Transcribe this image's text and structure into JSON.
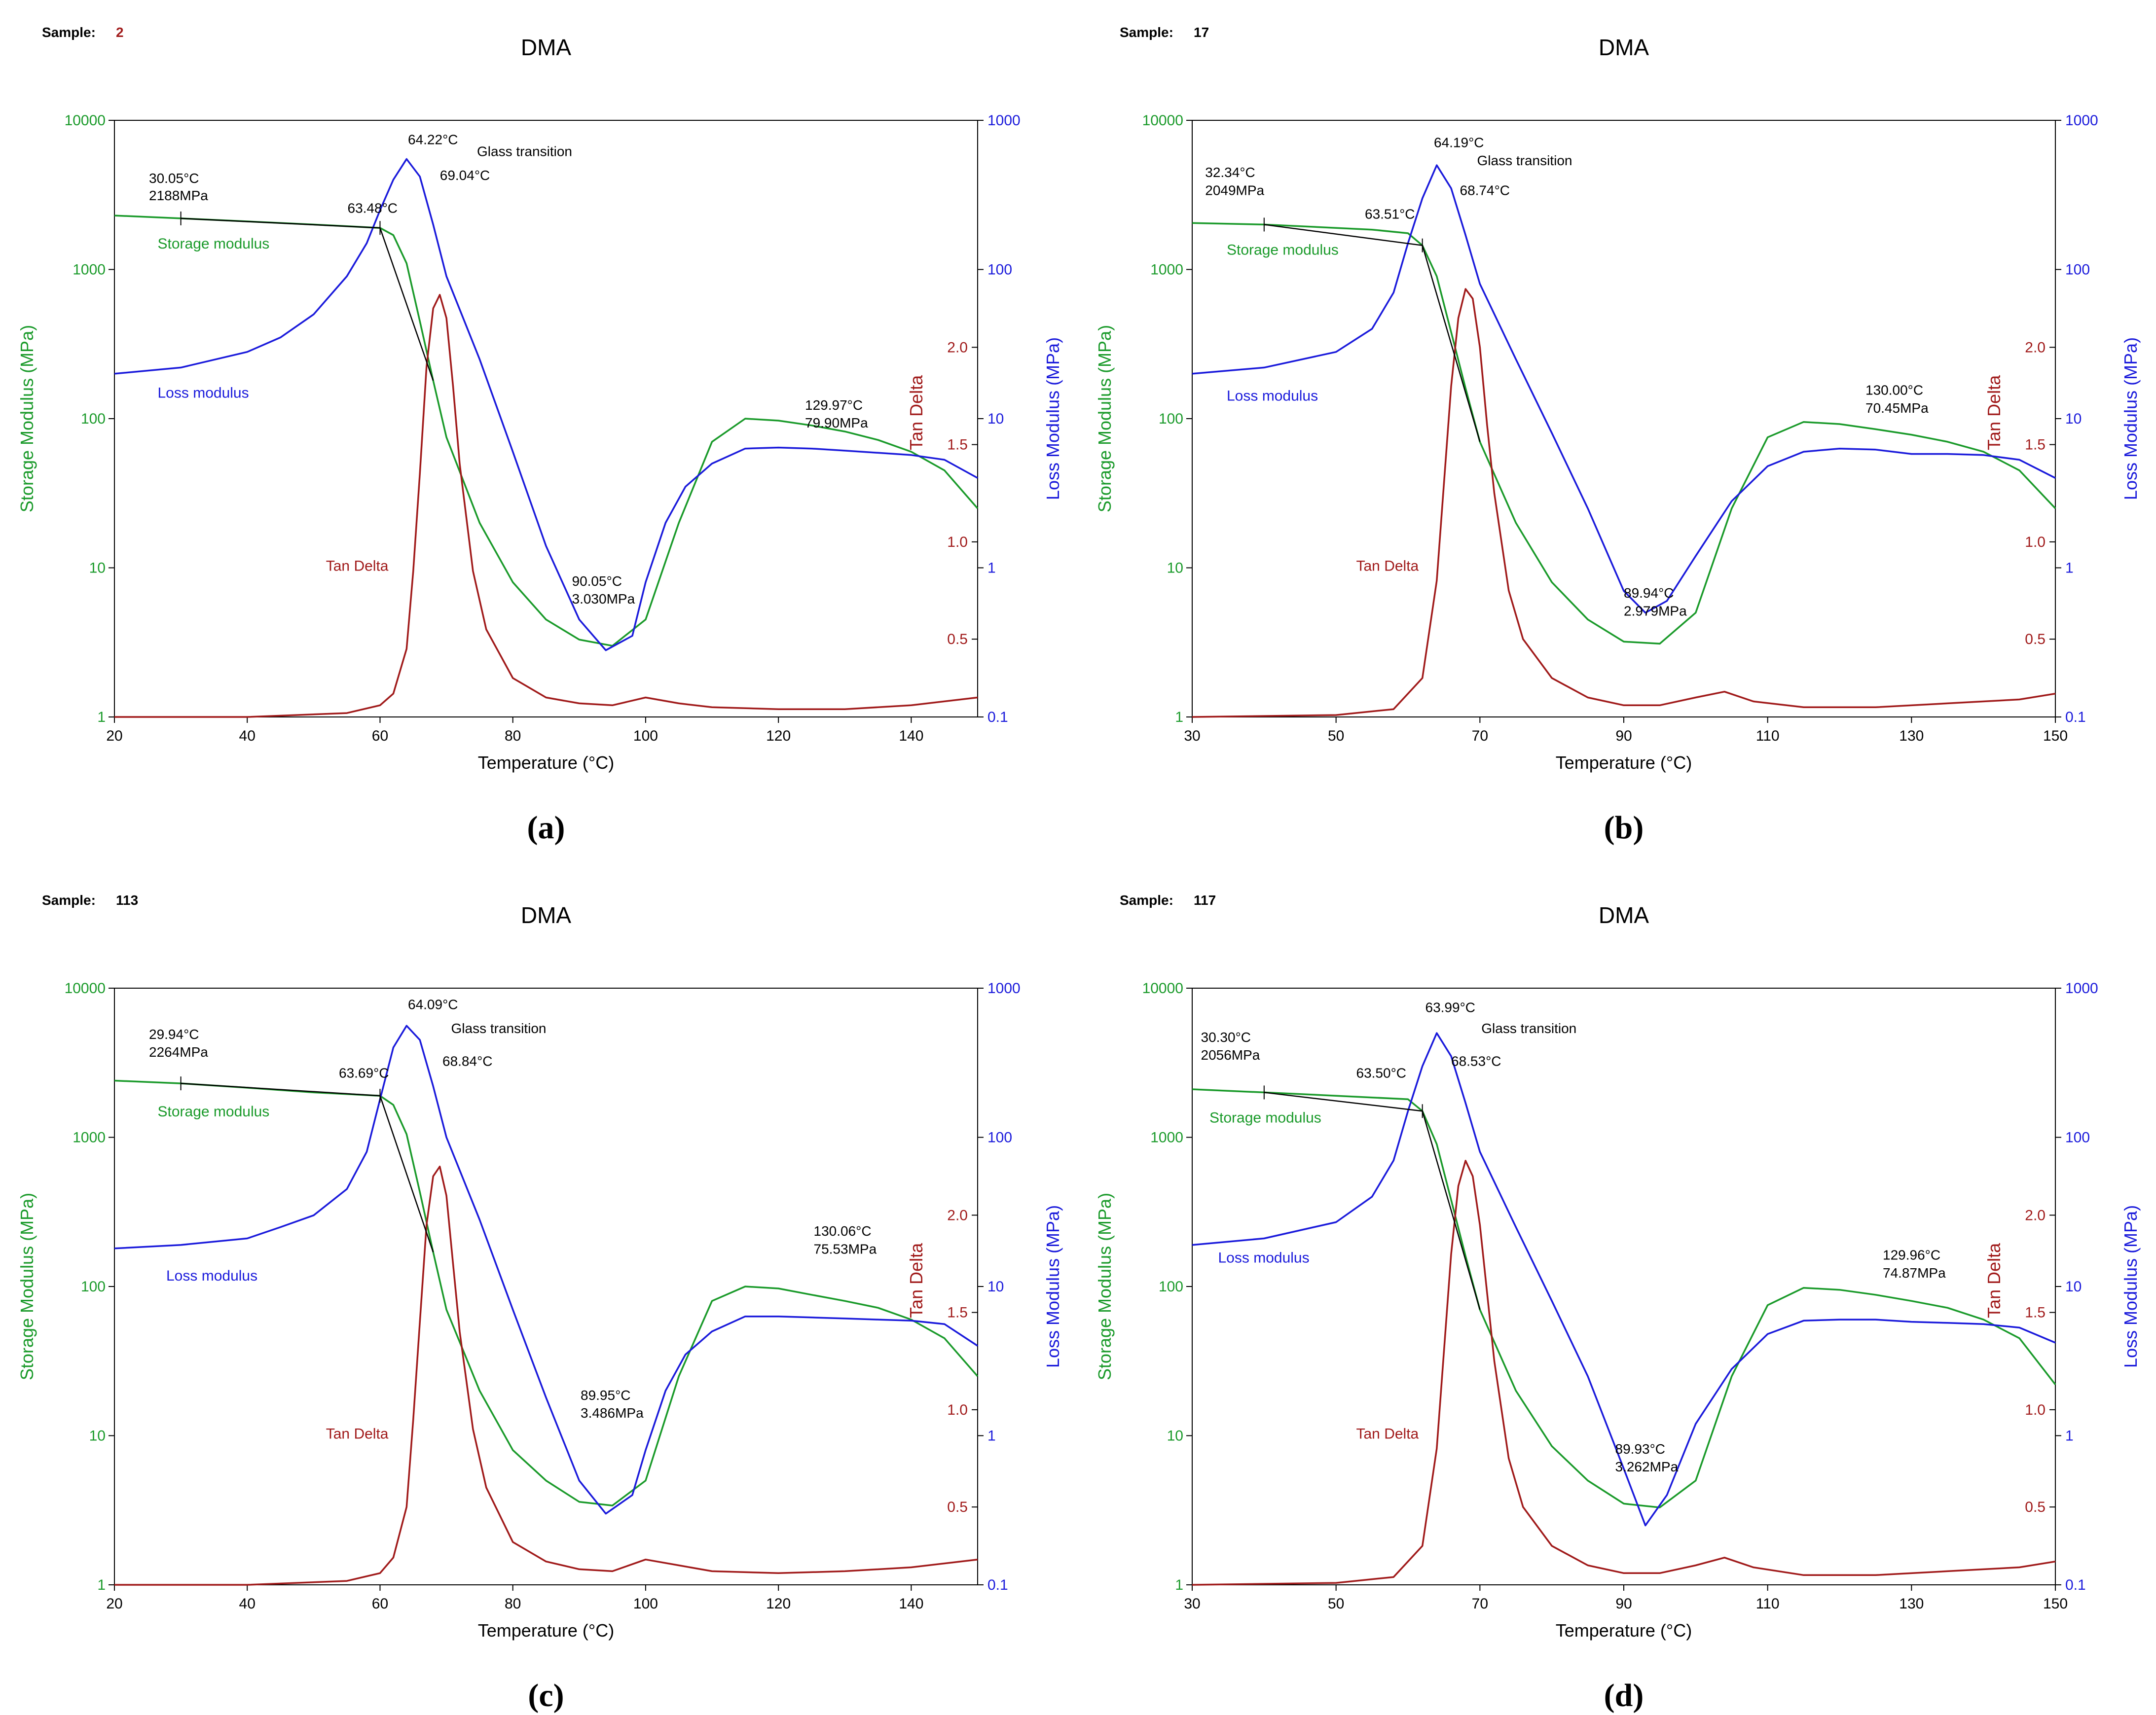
{
  "chart_data": [
    {
      "type": "line",
      "caption": "(a)",
      "sample_label": "Sample:",
      "sample_value": "2",
      "title": "DMA",
      "xlabel": "Temperature (°C)",
      "ylabel_left": "Storage Modulus (MPa)",
      "ylabel_right": "Loss Modulus (MPa)",
      "ylabel_tan": "Tan Delta",
      "xlim": [
        20,
        150
      ],
      "xticks": [
        20,
        40,
        60,
        80,
        100,
        120,
        140
      ],
      "ylim_left": [
        1,
        10000
      ],
      "yticks_left": [
        "1",
        "10",
        "100",
        "1000",
        "10000"
      ],
      "ylim_right": [
        0.1,
        1000
      ],
      "yticks_right": [
        "0.1",
        "1",
        "10",
        "100",
        "1000"
      ],
      "tan_ticks": [
        "0.5",
        "1.0",
        "1.5",
        "2.0"
      ],
      "tan_tick_values": [
        0.5,
        1.0,
        1.5,
        2.0
      ],
      "series": [
        {
          "name": "Storage modulus",
          "color": "#1a9a2a",
          "axis": "left",
          "x": [
            20,
            30,
            40,
            50,
            55,
            60,
            62,
            64,
            66,
            68,
            70,
            75,
            80,
            85,
            90,
            95,
            100,
            105,
            110,
            115,
            120,
            125,
            130,
            135,
            140,
            145,
            150
          ],
          "y": [
            2300,
            2200,
            2100,
            2000,
            1950,
            1900,
            1700,
            1100,
            450,
            180,
            75,
            20,
            8,
            4.5,
            3.3,
            3.0,
            4.5,
            20,
            70,
            100,
            97,
            90,
            82,
            72,
            60,
            45,
            25
          ]
        },
        {
          "name": "Loss modulus",
          "color": "#1a1adb",
          "axis": "right",
          "x": [
            20,
            30,
            40,
            45,
            50,
            55,
            58,
            60,
            62,
            64,
            66,
            68,
            70,
            75,
            80,
            85,
            90,
            94,
            98,
            100,
            103,
            106,
            110,
            115,
            120,
            125,
            130,
            135,
            140,
            145,
            150
          ],
          "y": [
            20,
            22,
            28,
            35,
            50,
            90,
            150,
            250,
            400,
            550,
            420,
            200,
            90,
            25,
            6,
            1.4,
            0.45,
            0.28,
            0.35,
            0.8,
            2.0,
            3.5,
            5.0,
            6.3,
            6.4,
            6.3,
            6.1,
            5.9,
            5.7,
            5.3,
            4.0
          ]
        },
        {
          "name": "Tan Delta",
          "color": "#a01a1a",
          "axis": "tan",
          "x": [
            20,
            40,
            55,
            60,
            62,
            64,
            65,
            66,
            67,
            68,
            69,
            70,
            71,
            72,
            74,
            76,
            80,
            85,
            90,
            95,
            100,
            105,
            110,
            120,
            130,
            140,
            150
          ],
          "y": [
            0.1,
            0.1,
            0.12,
            0.16,
            0.22,
            0.45,
            0.85,
            1.35,
            1.9,
            2.2,
            2.27,
            2.15,
            1.8,
            1.4,
            0.85,
            0.55,
            0.3,
            0.2,
            0.17,
            0.16,
            0.2,
            0.17,
            0.15,
            0.14,
            0.14,
            0.16,
            0.2
          ]
        }
      ],
      "series_labels": [
        "Storage modulus",
        "Loss modulus",
        "Tan Delta"
      ],
      "annotations": [
        "64.22°C",
        "Glass transition",
        "69.04°C",
        "63.48°C",
        "30.05°C",
        "2188MPa",
        "90.05°C",
        "3.030MPa",
        "129.97°C",
        "79.90MPa"
      ]
    },
    {
      "type": "line",
      "caption": "(b)",
      "sample_label": "Sample:",
      "sample_value": "17",
      "title": "DMA",
      "xlabel": "Temperature (°C)",
      "ylabel_left": "Storage Modulus (MPa)",
      "ylabel_right": "Loss Modulus (MPa)",
      "ylabel_tan": "Tan Delta",
      "xlim": [
        30,
        150
      ],
      "xticks": [
        30,
        50,
        70,
        90,
        110,
        130,
        150
      ],
      "ylim_left": [
        1,
        10000
      ],
      "yticks_left": [
        "1",
        "10",
        "100",
        "1000",
        "10000"
      ],
      "ylim_right": [
        0.1,
        1000
      ],
      "yticks_right": [
        "0.1",
        "1",
        "10",
        "100",
        "1000"
      ],
      "tan_ticks": [
        "0.5",
        "1.0",
        "1.5",
        "2.0"
      ],
      "tan_tick_values": [
        0.5,
        1.0,
        1.5,
        2.0
      ],
      "series": [
        {
          "name": "Storage modulus",
          "color": "#1a9a2a",
          "axis": "left",
          "x": [
            30,
            40,
            50,
            55,
            60,
            62,
            64,
            66,
            68,
            70,
            75,
            80,
            85,
            90,
            95,
            100,
            105,
            110,
            115,
            120,
            125,
            130,
            135,
            140,
            145,
            150
          ],
          "y": [
            2050,
            2000,
            1900,
            1850,
            1750,
            1450,
            900,
            380,
            160,
            70,
            20,
            8,
            4.5,
            3.2,
            3.1,
            5,
            25,
            75,
            95,
            92,
            85,
            78,
            70,
            60,
            45,
            25
          ]
        },
        {
          "name": "Loss modulus",
          "color": "#1a1adb",
          "axis": "right",
          "x": [
            30,
            40,
            50,
            55,
            58,
            60,
            62,
            64,
            66,
            68,
            70,
            75,
            80,
            85,
            90,
            93,
            96,
            100,
            105,
            110,
            115,
            120,
            125,
            130,
            135,
            140,
            145,
            150
          ],
          "y": [
            20,
            22,
            28,
            40,
            70,
            150,
            300,
            500,
            350,
            170,
            80,
            25,
            8,
            2.5,
            0.7,
            0.5,
            0.6,
            1.2,
            2.8,
            4.8,
            6.0,
            6.3,
            6.2,
            5.8,
            5.8,
            5.7,
            5.3,
            4.0
          ]
        },
        {
          "name": "Tan Delta",
          "color": "#a01a1a",
          "axis": "tan",
          "x": [
            30,
            50,
            58,
            62,
            64,
            65,
            66,
            67,
            68,
            69,
            70,
            71,
            72,
            74,
            76,
            80,
            85,
            90,
            95,
            100,
            104,
            108,
            115,
            125,
            135,
            145,
            150
          ],
          "y": [
            0.1,
            0.11,
            0.14,
            0.3,
            0.8,
            1.3,
            1.8,
            2.15,
            2.3,
            2.25,
            2.0,
            1.6,
            1.25,
            0.75,
            0.5,
            0.3,
            0.2,
            0.16,
            0.16,
            0.2,
            0.23,
            0.18,
            0.15,
            0.15,
            0.17,
            0.19,
            0.22
          ]
        }
      ],
      "series_labels": [
        "Storage modulus",
        "Loss modulus",
        "Tan Delta"
      ],
      "annotations": [
        "64.19°C",
        "Glass transition",
        "68.74°C",
        "63.51°C",
        "32.34°C",
        "2049MPa",
        "89.94°C",
        "2.979MPa",
        "130.00°C",
        "70.45MPa"
      ]
    },
    {
      "type": "line",
      "caption": "(c)",
      "sample_label": "Sample:",
      "sample_value": "113",
      "title": "DMA",
      "xlabel": "Temperature (°C)",
      "ylabel_left": "Storage Modulus (MPa)",
      "ylabel_right": "Loss Modulus (MPa)",
      "ylabel_tan": "Tan Delta",
      "xlim": [
        20,
        150
      ],
      "xticks": [
        20,
        40,
        60,
        80,
        100,
        120,
        140
      ],
      "ylim_left": [
        1,
        10000
      ],
      "yticks_left": [
        "1",
        "10",
        "100",
        "1000",
        "10000"
      ],
      "ylim_right": [
        0.1,
        1000
      ],
      "yticks_right": [
        "0.1",
        "1",
        "10",
        "100",
        "1000"
      ],
      "tan_ticks": [
        "0.5",
        "1.0",
        "1.5",
        "2.0"
      ],
      "tan_tick_values": [
        0.5,
        1.0,
        1.5,
        2.0
      ],
      "series": [
        {
          "name": "Storage modulus",
          "color": "#1a9a2a",
          "axis": "left",
          "x": [
            20,
            30,
            40,
            50,
            55,
            60,
            62,
            64,
            66,
            68,
            70,
            75,
            80,
            85,
            90,
            95,
            100,
            105,
            110,
            115,
            120,
            125,
            130,
            135,
            140,
            145,
            150
          ],
          "y": [
            2400,
            2300,
            2150,
            2000,
            1950,
            1900,
            1650,
            1050,
            430,
            170,
            70,
            20,
            8,
            5,
            3.6,
            3.4,
            5,
            25,
            80,
            100,
            97,
            88,
            80,
            72,
            60,
            45,
            25
          ]
        },
        {
          "name": "Loss modulus",
          "color": "#1a1adb",
          "axis": "right",
          "x": [
            20,
            30,
            40,
            45,
            50,
            55,
            58,
            60,
            62,
            64,
            66,
            68,
            70,
            75,
            80,
            85,
            90,
            94,
            98,
            100,
            103,
            106,
            110,
            115,
            120,
            125,
            130,
            135,
            140,
            145,
            150
          ],
          "y": [
            18,
            19,
            21,
            25,
            30,
            45,
            80,
            180,
            400,
            560,
            450,
            220,
            100,
            28,
            7,
            1.8,
            0.5,
            0.3,
            0.4,
            0.8,
            2,
            3.5,
            5,
            6.3,
            6.3,
            6.2,
            6.1,
            6.0,
            5.9,
            5.6,
            4.0
          ]
        },
        {
          "name": "Tan Delta",
          "color": "#a01a1a",
          "axis": "tan",
          "x": [
            20,
            40,
            55,
            60,
            62,
            64,
            65,
            66,
            67,
            68,
            69,
            70,
            71,
            72,
            74,
            76,
            80,
            85,
            90,
            95,
            100,
            105,
            110,
            120,
            130,
            140,
            150
          ],
          "y": [
            0.1,
            0.1,
            0.12,
            0.16,
            0.24,
            0.5,
            0.95,
            1.45,
            1.95,
            2.2,
            2.25,
            2.1,
            1.75,
            1.4,
            0.9,
            0.6,
            0.32,
            0.22,
            0.18,
            0.17,
            0.23,
            0.2,
            0.17,
            0.16,
            0.17,
            0.19,
            0.23
          ]
        }
      ],
      "series_labels": [
        "Storage modulus",
        "Loss modulus",
        "Tan Delta"
      ],
      "annotations": [
        "64.09°C",
        "Glass transition",
        "68.84°C",
        "63.69°C",
        "29.94°C",
        "2264MPa",
        "89.95°C",
        "3.486MPa",
        "130.06°C",
        "75.53MPa"
      ]
    },
    {
      "type": "line",
      "caption": "(d)",
      "sample_label": "Sample:",
      "sample_value": "117",
      "title": "DMA",
      "xlabel": "Temperature (°C)",
      "ylabel_left": "Storage Modulus (MPa)",
      "ylabel_right": "Loss Modulus (MPa)",
      "ylabel_tan": "Tan Delta",
      "xlim": [
        30,
        150
      ],
      "xticks": [
        30,
        50,
        70,
        90,
        110,
        130,
        150
      ],
      "ylim_left": [
        1,
        10000
      ],
      "yticks_left": [
        "1",
        "10",
        "100",
        "1000",
        "10000"
      ],
      "ylim_right": [
        0.1,
        1000
      ],
      "yticks_right": [
        "0.1",
        "1",
        "10",
        "100",
        "1000"
      ],
      "tan_ticks": [
        "0.5",
        "1.0",
        "1.5",
        "2.0"
      ],
      "tan_tick_values": [
        0.5,
        1.0,
        1.5,
        2.0
      ],
      "series": [
        {
          "name": "Storage modulus",
          "color": "#1a9a2a",
          "axis": "left",
          "x": [
            30,
            40,
            50,
            55,
            60,
            62,
            64,
            66,
            68,
            70,
            75,
            80,
            85,
            90,
            95,
            100,
            105,
            110,
            115,
            120,
            125,
            130,
            135,
            140,
            145,
            150
          ],
          "y": [
            2100,
            2000,
            1900,
            1850,
            1800,
            1500,
            900,
            380,
            160,
            70,
            20,
            8.5,
            5,
            3.5,
            3.3,
            5,
            25,
            75,
            98,
            95,
            88,
            80,
            72,
            60,
            45,
            22
          ]
        },
        {
          "name": "Loss modulus",
          "color": "#1a1adb",
          "axis": "right",
          "x": [
            30,
            40,
            50,
            55,
            58,
            60,
            62,
            64,
            66,
            68,
            70,
            75,
            80,
            85,
            90,
            93,
            96,
            100,
            105,
            110,
            115,
            120,
            125,
            130,
            135,
            140,
            145,
            150
          ],
          "y": [
            19,
            21,
            27,
            40,
            70,
            150,
            300,
            500,
            350,
            170,
            80,
            25,
            8,
            2.5,
            0.6,
            0.25,
            0.4,
            1.2,
            2.8,
            4.8,
            5.9,
            6.0,
            6.0,
            5.8,
            5.7,
            5.6,
            5.3,
            4.2
          ]
        },
        {
          "name": "Tan Delta",
          "color": "#a01a1a",
          "axis": "tan",
          "x": [
            30,
            50,
            58,
            62,
            64,
            65,
            66,
            67,
            68,
            69,
            70,
            71,
            72,
            74,
            76,
            80,
            85,
            90,
            95,
            100,
            104,
            108,
            115,
            125,
            135,
            145,
            150
          ],
          "y": [
            0.1,
            0.11,
            0.14,
            0.3,
            0.8,
            1.3,
            1.8,
            2.15,
            2.28,
            2.2,
            1.95,
            1.6,
            1.25,
            0.75,
            0.5,
            0.3,
            0.2,
            0.16,
            0.16,
            0.2,
            0.24,
            0.19,
            0.15,
            0.15,
            0.17,
            0.19,
            0.22
          ]
        }
      ],
      "series_labels": [
        "Storage modulus",
        "Loss modulus",
        "Tan Delta"
      ],
      "annotations": [
        "63.99°C",
        "Glass transition",
        "68.53°C",
        "63.50°C",
        "30.30°C",
        "2056MPa",
        "89.93°C",
        "3.262MPa",
        "129.96°C",
        "74.87MPa"
      ]
    }
  ]
}
